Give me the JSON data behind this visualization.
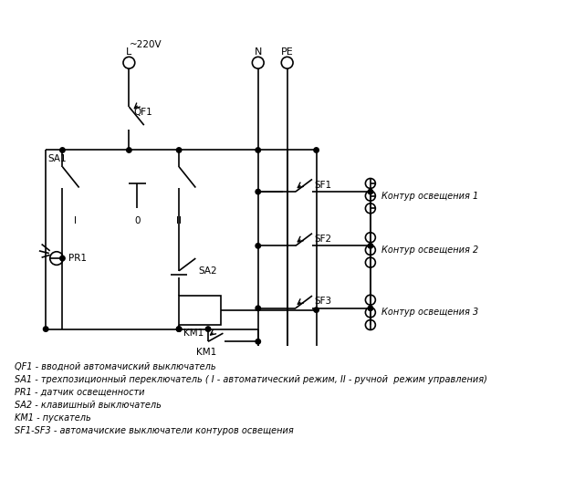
{
  "bg_color": "#ffffff",
  "line_color": "#000000",
  "font_size_label": 7.5,
  "font_size_legend": 7.0,
  "legend_lines": [
    "QF1 - вводной автомачиский выключатель",
    "SA1 - трехпозиционный переключатель ( I - автоматический режим, II - ручной  режим управления)",
    "PR1 - датчик освещенности",
    "SA2 - клавишный выключатель",
    "KM1 - пускатель",
    "SF1-SF3 - автомачиские выключатели контуров освещения"
  ]
}
